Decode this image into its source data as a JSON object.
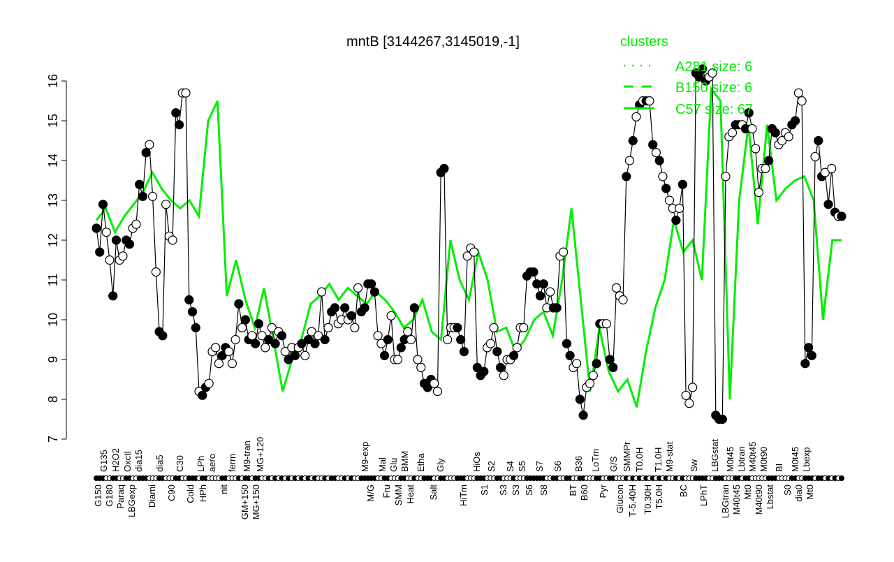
{
  "chart_data": {
    "type": "line",
    "title": "mntB [3144267,3145019,-1]",
    "xlabel": "",
    "ylabel": "",
    "ylim": [
      7,
      16
    ],
    "yticks": [
      7,
      8,
      9,
      10,
      11,
      12,
      13,
      14,
      15,
      16
    ],
    "grid": false,
    "legend": {
      "title": "clusters",
      "placement": "top-right",
      "color": "#00ee00",
      "entries": [
        {
          "label": "A281 size: 6",
          "style": "dotted"
        },
        {
          "label": "B150 size: 6",
          "style": "dashed"
        },
        {
          "label": "C57 size: 67",
          "style": "solid"
        }
      ]
    },
    "colors": {
      "points": "#000000",
      "cluster_line": "#00ee00"
    },
    "tick_labels_upper": [
      "G135",
      "H2O2",
      "Oxctl",
      "dia15",
      "dia5",
      "C30",
      "LPh",
      "aero",
      "ferm",
      "M9-tran",
      "MG+120",
      "M9-exp",
      "Mal",
      "Glu",
      "BMM",
      "Etha",
      "Gly",
      "HiOs",
      "S2",
      "S4",
      "S5",
      "S7",
      "S6",
      "B36",
      "LoTm",
      "G/S",
      "SMMPr",
      "T0.0H",
      "T1.0H",
      "M9-stat",
      "Sw",
      "LBGstat",
      "M0t45",
      "Lbtran",
      "M40t45",
      "M0t90",
      "BI",
      "M0t45",
      "Lbexp"
    ],
    "tick_labels_lower": [
      "G150",
      "G180",
      "Paraq",
      "LBGexp",
      "Diami",
      "C90",
      "Cold",
      "HPh",
      "nit",
      "GM+150",
      "MG+150",
      "M/G",
      "Fru",
      "SMM",
      "Heat",
      "Salt",
      "HiTm",
      "S1",
      "S3",
      "S3",
      "S6",
      "S8",
      "BT",
      "B60",
      "Pyr",
      "Glucon",
      "T-5.40H",
      "T0.30H",
      "T5.0H",
      "BC",
      "LPhT",
      "LBGtran",
      "M40t45",
      "Mt0",
      "M40t90",
      "Lbstat",
      "S0",
      "dia0",
      "Mt0"
    ],
    "points": [
      [
        12.3,
        1
      ],
      [
        11.7,
        1
      ],
      [
        12.9,
        1
      ],
      [
        12.2,
        0
      ],
      [
        11.5,
        0
      ],
      [
        10.6,
        1
      ],
      [
        12.0,
        1
      ],
      [
        11.5,
        0
      ],
      [
        11.6,
        0
      ],
      [
        12.0,
        1
      ],
      [
        11.9,
        1
      ],
      [
        12.3,
        0
      ],
      [
        12.4,
        0
      ],
      [
        13.4,
        1
      ],
      [
        13.1,
        1
      ],
      [
        14.2,
        1
      ],
      [
        14.4,
        0
      ],
      [
        13.1,
        0
      ],
      [
        11.2,
        0
      ],
      [
        9.7,
        1
      ],
      [
        9.6,
        1
      ],
      [
        12.9,
        0
      ],
      [
        12.1,
        0
      ],
      [
        12.0,
        0
      ],
      [
        15.2,
        1
      ],
      [
        14.9,
        1
      ],
      [
        15.7,
        0
      ],
      [
        15.7,
        0
      ],
      [
        10.5,
        1
      ],
      [
        10.2,
        1
      ],
      [
        9.8,
        1
      ],
      [
        8.2,
        0
      ],
      [
        8.1,
        1
      ],
      [
        8.3,
        1
      ],
      [
        8.4,
        0
      ],
      [
        9.2,
        0
      ],
      [
        9.3,
        0
      ],
      [
        8.9,
        0
      ],
      [
        9.1,
        1
      ],
      [
        9.3,
        1
      ],
      [
        9.2,
        0
      ],
      [
        8.9,
        0
      ],
      [
        9.5,
        0
      ],
      [
        10.4,
        1
      ],
      [
        9.8,
        0
      ],
      [
        10.0,
        1
      ],
      [
        9.5,
        1
      ],
      [
        9.6,
        0
      ],
      [
        9.4,
        1
      ],
      [
        9.9,
        1
      ],
      [
        9.6,
        0
      ],
      [
        9.3,
        0
      ],
      [
        9.5,
        1
      ],
      [
        9.8,
        0
      ],
      [
        9.4,
        1
      ],
      [
        9.7,
        0
      ],
      [
        9.6,
        1
      ],
      [
        9.2,
        0
      ],
      [
        9.0,
        1
      ],
      [
        9.3,
        0
      ],
      [
        9.1,
        1
      ],
      [
        9.3,
        0
      ],
      [
        9.4,
        1
      ],
      [
        9.1,
        0
      ],
      [
        9.5,
        1
      ],
      [
        9.7,
        0
      ],
      [
        9.4,
        1
      ],
      [
        9.6,
        0
      ],
      [
        10.7,
        0
      ],
      [
        9.5,
        1
      ],
      [
        9.8,
        0
      ],
      [
        10.2,
        1
      ],
      [
        10.3,
        1
      ],
      [
        9.9,
        0
      ],
      [
        10.0,
        0
      ],
      [
        10.3,
        1
      ],
      [
        10.0,
        0
      ],
      [
        10.1,
        1
      ],
      [
        9.8,
        0
      ],
      [
        10.8,
        0
      ],
      [
        10.2,
        1
      ],
      [
        10.3,
        1
      ],
      [
        10.9,
        1
      ],
      [
        10.9,
        1
      ],
      [
        10.7,
        1
      ],
      [
        9.6,
        0
      ],
      [
        9.4,
        0
      ],
      [
        9.1,
        1
      ],
      [
        9.5,
        1
      ],
      [
        10.1,
        0
      ],
      [
        9.0,
        0
      ],
      [
        9.0,
        0
      ],
      [
        9.3,
        1
      ],
      [
        9.5,
        1
      ],
      [
        9.7,
        0
      ],
      [
        9.5,
        0
      ],
      [
        10.3,
        1
      ],
      [
        9.0,
        0
      ],
      [
        8.8,
        0
      ],
      [
        8.4,
        1
      ],
      [
        8.3,
        1
      ],
      [
        8.5,
        1
      ],
      [
        8.4,
        0
      ],
      [
        8.2,
        0
      ],
      [
        13.7,
        1
      ],
      [
        13.8,
        1
      ],
      [
        9.5,
        0
      ],
      [
        9.8,
        0
      ],
      [
        9.8,
        0
      ],
      [
        9.8,
        1
      ],
      [
        9.5,
        1
      ],
      [
        9.2,
        1
      ],
      [
        11.6,
        0
      ],
      [
        11.8,
        0
      ],
      [
        11.7,
        0
      ],
      [
        8.8,
        1
      ],
      [
        8.6,
        1
      ],
      [
        8.7,
        1
      ],
      [
        9.3,
        0
      ],
      [
        9.4,
        0
      ],
      [
        9.8,
        0
      ],
      [
        9.2,
        1
      ],
      [
        8.8,
        1
      ],
      [
        8.6,
        0
      ],
      [
        9.0,
        0
      ],
      [
        9.0,
        0
      ],
      [
        9.1,
        1
      ],
      [
        9.3,
        0
      ],
      [
        9.8,
        0
      ],
      [
        9.8,
        0
      ],
      [
        11.1,
        1
      ],
      [
        11.2,
        1
      ],
      [
        11.2,
        1
      ],
      [
        10.9,
        1
      ],
      [
        10.6,
        1
      ],
      [
        10.9,
        1
      ],
      [
        10.3,
        0
      ],
      [
        10.7,
        0
      ],
      [
        10.3,
        1
      ],
      [
        10.3,
        1
      ],
      [
        11.6,
        0
      ],
      [
        11.7,
        0
      ],
      [
        9.4,
        1
      ],
      [
        9.1,
        1
      ],
      [
        8.8,
        0
      ],
      [
        8.9,
        0
      ],
      [
        8.0,
        1
      ],
      [
        7.6,
        1
      ],
      [
        8.3,
        0
      ],
      [
        8.4,
        0
      ],
      [
        8.6,
        0
      ],
      [
        8.9,
        1
      ],
      [
        9.9,
        1
      ],
      [
        9.9,
        0
      ],
      [
        9.9,
        0
      ],
      [
        9.0,
        1
      ],
      [
        8.8,
        1
      ],
      [
        10.8,
        0
      ],
      [
        10.6,
        0
      ],
      [
        10.5,
        0
      ],
      [
        13.6,
        1
      ],
      [
        14.0,
        0
      ],
      [
        14.5,
        1
      ],
      [
        15.1,
        0
      ],
      [
        15.4,
        1
      ],
      [
        15.5,
        0
      ],
      [
        15.5,
        1
      ],
      [
        15.5,
        0
      ],
      [
        14.4,
        1
      ],
      [
        14.2,
        0
      ],
      [
        14.0,
        1
      ],
      [
        13.6,
        0
      ],
      [
        13.3,
        1
      ],
      [
        13.0,
        0
      ],
      [
        12.8,
        0
      ],
      [
        12.5,
        1
      ],
      [
        12.8,
        0
      ],
      [
        13.4,
        1
      ],
      [
        8.1,
        0
      ],
      [
        7.9,
        0
      ],
      [
        8.3,
        0
      ],
      [
        16.2,
        1
      ],
      [
        16.1,
        1
      ],
      [
        16.3,
        1
      ],
      [
        16.0,
        1
      ],
      [
        16.1,
        0
      ],
      [
        16.2,
        0
      ],
      [
        7.6,
        1
      ],
      [
        7.5,
        1
      ],
      [
        7.5,
        1
      ],
      [
        13.6,
        0
      ],
      [
        14.6,
        0
      ],
      [
        14.7,
        0
      ],
      [
        14.9,
        1
      ],
      [
        14.9,
        1
      ],
      [
        14.9,
        0
      ],
      [
        14.8,
        1
      ],
      [
        15.2,
        1
      ],
      [
        14.8,
        0
      ],
      [
        14.3,
        0
      ],
      [
        13.2,
        0
      ],
      [
        13.8,
        0
      ],
      [
        13.8,
        0
      ],
      [
        14.0,
        1
      ],
      [
        14.8,
        1
      ],
      [
        14.7,
        1
      ],
      [
        14.4,
        0
      ],
      [
        14.5,
        0
      ],
      [
        14.7,
        0
      ],
      [
        14.6,
        0
      ],
      [
        14.9,
        1
      ],
      [
        15.0,
        1
      ],
      [
        15.7,
        0
      ],
      [
        15.5,
        0
      ],
      [
        8.9,
        1
      ],
      [
        9.3,
        1
      ],
      [
        9.1,
        1
      ],
      [
        14.1,
        0
      ],
      [
        14.5,
        1
      ],
      [
        13.6,
        1
      ],
      [
        13.7,
        0
      ],
      [
        12.9,
        1
      ],
      [
        13.8,
        0
      ],
      [
        12.7,
        1
      ],
      [
        12.6,
        0
      ],
      [
        12.6,
        1
      ]
    ],
    "cluster_line": [
      12.5,
      12.8,
      12.2,
      12.6,
      12.9,
      13.2,
      13.7,
      13.3,
      13.0,
      12.8,
      13.0,
      12.6,
      15.0,
      15.5,
      10.6,
      11.5,
      10.5,
      9.8,
      10.8,
      9.5,
      8.2,
      9.0,
      9.5,
      10.4,
      10.6,
      10.9,
      10.5,
      10.8,
      10.6,
      10.4,
      10.7,
      10.5,
      10.2,
      9.8,
      10.0,
      10.5,
      9.7,
      9.5,
      12.0,
      11.0,
      10.5,
      11.7,
      11.0,
      9.7,
      9.8,
      9.2,
      9.5,
      10.0,
      10.2,
      9.6,
      11.0,
      12.8,
      10.5,
      8.2,
      9.8,
      8.7,
      8.2,
      8.5,
      7.8,
      9.2,
      10.3,
      11.0,
      12.5,
      11.7,
      12.0,
      11.0,
      15.8,
      15.5,
      8.0,
      13.0,
      14.9,
      12.4,
      14.9,
      13.0,
      13.3,
      13.5,
      13.6,
      13.0,
      10.0,
      12.0,
      12.0
    ]
  }
}
